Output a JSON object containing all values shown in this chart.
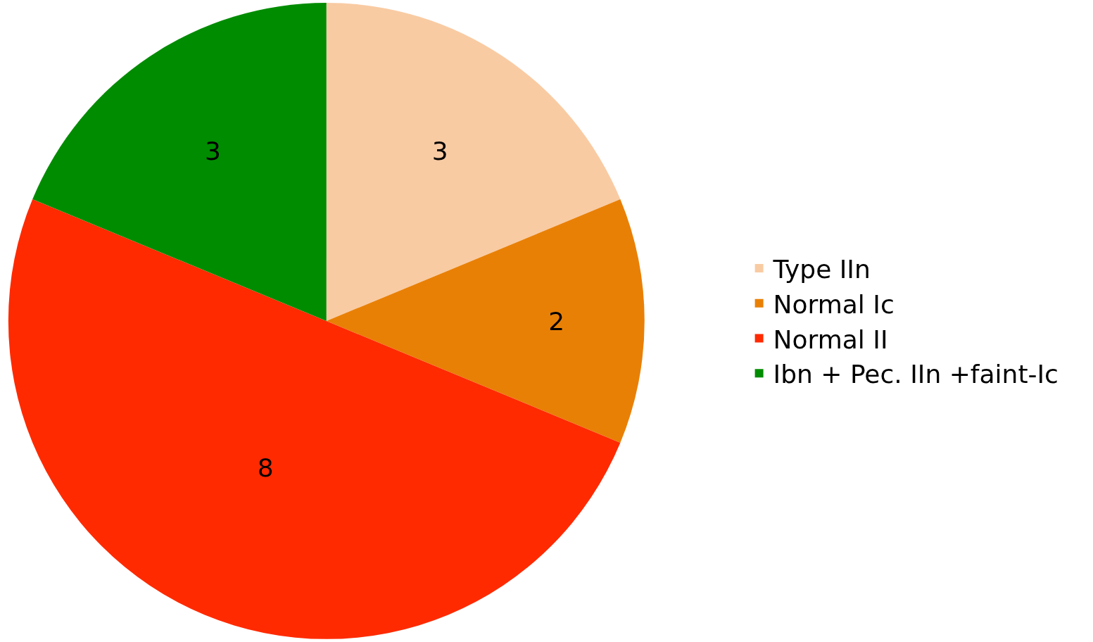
{
  "chart_data": {
    "type": "pie",
    "categories": [
      "Type IIn",
      "Normal Ic",
      "Normal II",
      "Ibn + Pec. IIn +faint-Ic"
    ],
    "values": [
      3,
      2,
      8,
      3
    ],
    "colors": [
      "#f9cba3",
      "#e98006",
      "#ff2a00",
      "#008c00"
    ],
    "data_labels": true,
    "legend": "right"
  }
}
